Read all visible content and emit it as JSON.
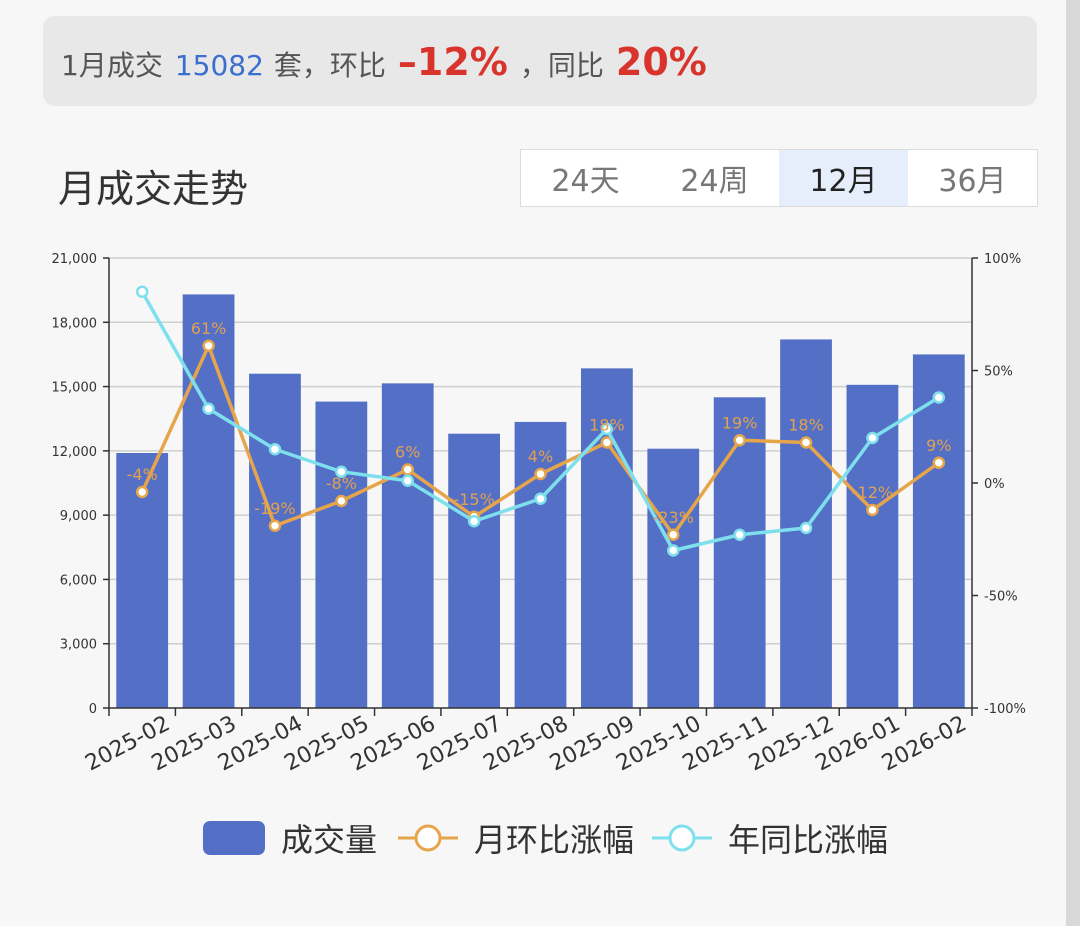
{
  "summary": {
    "prefix": "1月成交",
    "volume": "15082",
    "unit": "套，环比",
    "mom": "–12%",
    "sep": "，同比",
    "yoy": "20%"
  },
  "section": {
    "title": "月成交走势",
    "tabs": [
      {
        "label": "24天",
        "active": false
      },
      {
        "label": "24周",
        "active": false
      },
      {
        "label": "12月",
        "active": true
      },
      {
        "label": "36月",
        "active": false
      }
    ]
  },
  "legend": {
    "volume": "成交量",
    "mom": "月环比涨幅",
    "yoy": "年同比涨幅"
  },
  "chart_data": {
    "type": "bar",
    "categories": [
      "2025-02",
      "2025-03",
      "2025-04",
      "2025-05",
      "2025-06",
      "2025-07",
      "2025-08",
      "2025-09",
      "2025-10",
      "2025-11",
      "2025-12",
      "2026-01",
      "2026-02"
    ],
    "series": [
      {
        "name": "成交量",
        "type": "bar",
        "axis": "left",
        "color": "#5470c6",
        "values": [
          11900,
          19300,
          15600,
          14300,
          15150,
          12800,
          13350,
          15850,
          12100,
          14500,
          17200,
          15082,
          16500
        ]
      },
      {
        "name": "月环比涨幅",
        "type": "line",
        "axis": "right",
        "color": "#e6a54a",
        "values": [
          -4,
          61,
          -19,
          -8,
          6,
          -15,
          4,
          18,
          -23,
          19,
          18,
          -12,
          9
        ],
        "labels": [
          "-4%",
          "61%",
          "-19%",
          "-8%",
          "6%",
          "-15%",
          "4%",
          "18%",
          "-23%",
          "19%",
          "18%",
          "-12%",
          "9%"
        ]
      },
      {
        "name": "年同比涨幅",
        "type": "line",
        "axis": "right",
        "color": "#7ee0ec",
        "values": [
          85,
          33,
          15,
          5,
          1,
          -17,
          -7,
          24,
          -30,
          -23,
          -20,
          20,
          38
        ]
      }
    ],
    "y_left": {
      "ticks": [
        "0",
        "3,000",
        "6,000",
        "9,000",
        "12,000",
        "15,000",
        "18,000",
        "21,000"
      ],
      "min": 0,
      "max": 21000
    },
    "y_right": {
      "ticks": [
        "-100%",
        "-50%",
        "0%",
        "50%",
        "100%"
      ],
      "min": -100,
      "max": 100
    },
    "grid": true,
    "legend_position": "bottom"
  }
}
